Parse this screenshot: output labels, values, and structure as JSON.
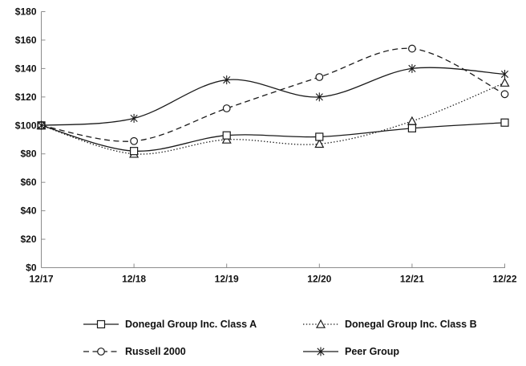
{
  "chart_data": {
    "type": "line",
    "title": "",
    "xlabel": "",
    "ylabel": "",
    "categories": [
      "12/17",
      "12/18",
      "12/19",
      "12/20",
      "12/21",
      "12/22"
    ],
    "y_tick_labels": [
      "$0",
      "$20",
      "$40",
      "$60",
      "$80",
      "$100",
      "$120",
      "$140",
      "$160",
      "$180"
    ],
    "ylim": [
      0,
      180
    ],
    "y_tick_step": 20,
    "grid": false,
    "legend_position": "bottom",
    "line_smoothing": true,
    "series": [
      {
        "name": "Donegal Group Inc. Class A",
        "marker": "square",
        "line_style": "solid",
        "values": [
          100,
          82,
          93,
          92,
          98,
          102
        ]
      },
      {
        "name": "Donegal Group Inc. Class B",
        "marker": "triangle",
        "line_style": "dotted",
        "values": [
          100,
          80,
          90,
          87,
          103,
          130
        ]
      },
      {
        "name": "Russell 2000",
        "marker": "circle",
        "line_style": "dashed",
        "values": [
          100,
          89,
          112,
          134,
          154,
          122
        ]
      },
      {
        "name": "Peer Group",
        "marker": "asterisk",
        "line_style": "solid",
        "values": [
          100,
          105,
          132,
          120,
          140,
          136
        ]
      }
    ],
    "colors": {
      "series": "#1a1a1a",
      "axis": "#8c8c8c",
      "text": "#111111",
      "background": "#ffffff"
    }
  }
}
